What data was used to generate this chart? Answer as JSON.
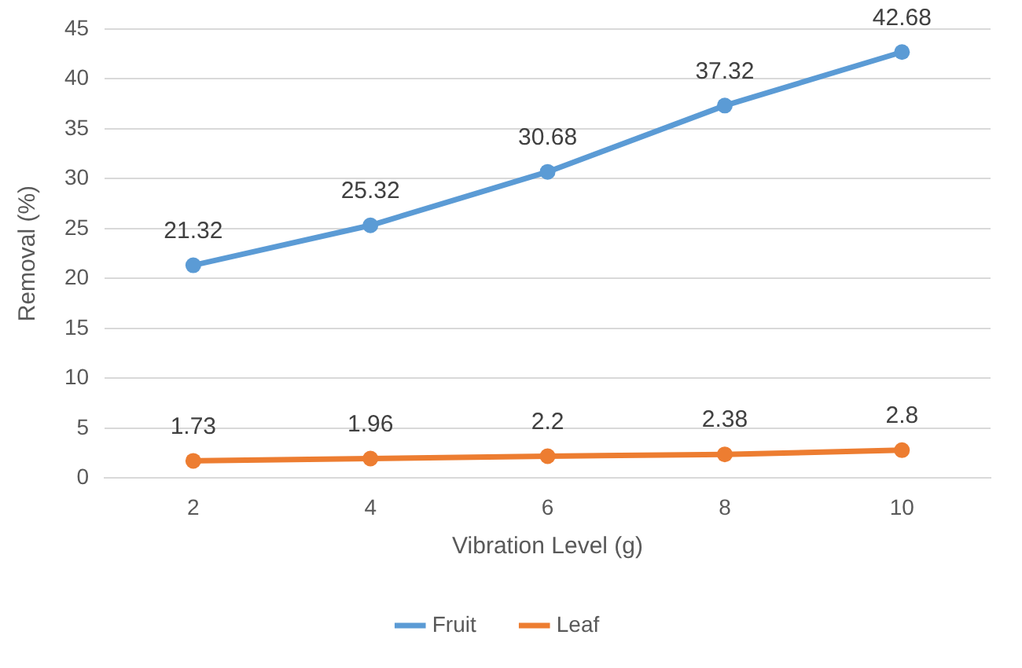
{
  "chart_data": {
    "type": "line",
    "xlabel": "Vibration Level (g)",
    "ylabel": "Removal (%)",
    "categories": [
      "2",
      "4",
      "6",
      "8",
      "10"
    ],
    "series": [
      {
        "name": "Fruit",
        "color": "#5b9bd5",
        "values": [
          21.32,
          25.32,
          30.68,
          37.32,
          42.68
        ]
      },
      {
        "name": "Leaf",
        "color": "#ed7d31",
        "values": [
          1.73,
          1.96,
          2.2,
          2.38,
          2.8
        ]
      }
    ],
    "ylim": [
      0,
      45
    ],
    "yticks": [
      0,
      5,
      10,
      15,
      20,
      25,
      30,
      35,
      40,
      45
    ],
    "grid": "y",
    "legend": "bottom",
    "marker": "circle",
    "line_style": "solid",
    "data_labels": true
  }
}
